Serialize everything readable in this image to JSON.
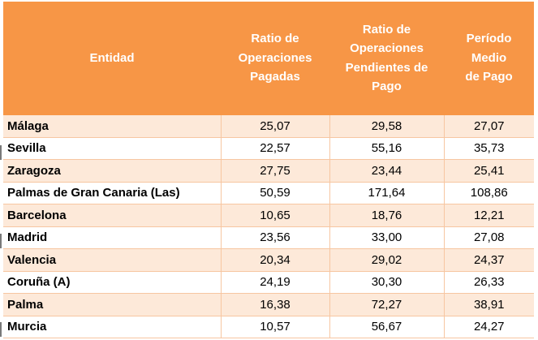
{
  "table": {
    "headers": {
      "entity": [
        "Entidad"
      ],
      "paid": [
        "Ratio de",
        "Operaciones",
        "Pagadas"
      ],
      "pending": [
        "Ratio de",
        "Operaciones",
        "Pendientes de",
        "Pago"
      ],
      "pmp": [
        "Período",
        "Medio",
        "de Pago"
      ]
    },
    "rows": [
      {
        "entity": "Málaga",
        "paid": "25,07",
        "pending": "29,58",
        "pmp": "27,07"
      },
      {
        "entity": "Sevilla",
        "paid": "22,57",
        "pending": "55,16",
        "pmp": "35,73"
      },
      {
        "entity": "Zaragoza",
        "paid": "27,75",
        "pending": "23,44",
        "pmp": "25,41"
      },
      {
        "entity": "Palmas de Gran Canaria (Las)",
        "paid": "50,59",
        "pending": "171,64",
        "pmp": "108,86"
      },
      {
        "entity": "Barcelona",
        "paid": "10,65",
        "pending": "18,76",
        "pmp": "12,21"
      },
      {
        "entity": "Madrid",
        "paid": "23,56",
        "pending": "33,00",
        "pmp": "27,08"
      },
      {
        "entity": "Valencia",
        "paid": "20,34",
        "pending": "29,02",
        "pmp": "24,37"
      },
      {
        "entity": "Coruña (A)",
        "paid": "24,19",
        "pending": "30,30",
        "pmp": "26,33"
      },
      {
        "entity": "Palma",
        "paid": "16,38",
        "pending": "72,27",
        "pmp": "38,91"
      },
      {
        "entity": "Murcia",
        "paid": "10,57",
        "pending": "56,67",
        "pmp": "24,27"
      }
    ]
  },
  "colors": {
    "header_bg": "#f79646",
    "header_text": "#ffffff",
    "band_row": "#fde9d9",
    "plain_row": "#ffffff",
    "grid_line": "#f7c6a1"
  }
}
